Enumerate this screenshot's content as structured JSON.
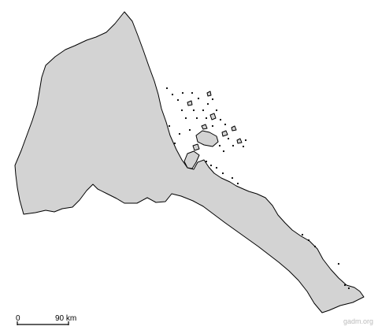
{
  "map": {
    "land_color": "#d3d3d3",
    "border_color": "#000000",
    "background_color": "#ffffff"
  },
  "scale_bar": {
    "start_label": "0",
    "end_label": "90 km"
  },
  "credit": {
    "text": "gadm.org",
    "color": "#bbbbbb"
  }
}
